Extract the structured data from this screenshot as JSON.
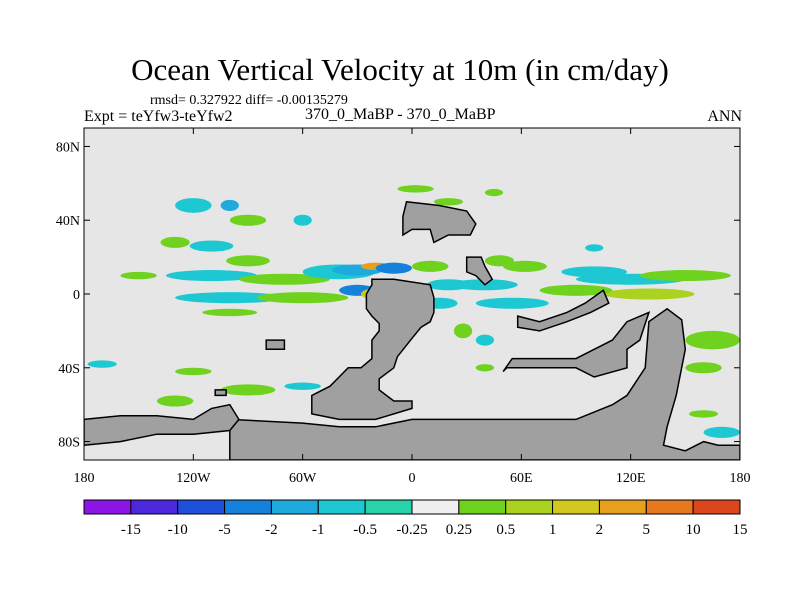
{
  "chart_data": {
    "type": "heatmap",
    "title": "Ocean Vertical Velocity at 10m (in cm/day)",
    "stats_line": "rmsd= 0.327922 diff= -0.00135279",
    "experiment_label": "Expt = teYfw3-teYfw2",
    "cases_label": "370_0_MaBP - 370_0_MaBP",
    "season_label": "ANN",
    "x_axis": {
      "range": [
        -180,
        180
      ],
      "ticks": [
        {
          "value": -180,
          "label": "180"
        },
        {
          "value": -120,
          "label": "120W"
        },
        {
          "value": -60,
          "label": "60W"
        },
        {
          "value": 0,
          "label": "0"
        },
        {
          "value": 60,
          "label": "60E"
        },
        {
          "value": 120,
          "label": "120E"
        },
        {
          "value": 180,
          "label": "180"
        }
      ]
    },
    "y_axis": {
      "range": [
        -90,
        90
      ],
      "ticks": [
        {
          "value": 80,
          "label": "80N"
        },
        {
          "value": 40,
          "label": "40N"
        },
        {
          "value": 0,
          "label": "0"
        },
        {
          "value": -40,
          "label": "40S"
        },
        {
          "value": -80,
          "label": "80S"
        }
      ]
    },
    "colorbar": {
      "labels": [
        "-15",
        "-10",
        "-5",
        "-2",
        "-1",
        "-0.5",
        "-0.25",
        "0.25",
        "0.5",
        "1",
        "2",
        "5",
        "10",
        "15"
      ],
      "colors": [
        "#8c14e6",
        "#4b28dc",
        "#1e50dc",
        "#1482dc",
        "#1eaadc",
        "#1ec8d2",
        "#28d2aa",
        "#f0f0f0",
        "#6ed21e",
        "#aad21e",
        "#d2c81e",
        "#e6a01e",
        "#e6781e",
        "#dc461e"
      ]
    },
    "land_color": "#a0a0a0",
    "background_color": "#e6e6e6",
    "land_masks": [
      {
        "name": "north-america",
        "points": [
          [
            -10,
            8
          ],
          [
            -22,
            8
          ],
          [
            -22,
            5
          ],
          [
            -25,
            0
          ],
          [
            -25,
            -8
          ],
          [
            -22,
            -12
          ],
          [
            -18,
            -16
          ],
          [
            -18,
            -20
          ],
          [
            -22,
            -25
          ],
          [
            -22,
            -35
          ],
          [
            -28,
            -40
          ],
          [
            -35,
            -40
          ],
          [
            -40,
            -45
          ],
          [
            -45,
            -50
          ],
          [
            -55,
            -55
          ],
          [
            -55,
            -60
          ],
          [
            -55,
            -65
          ],
          [
            -40,
            -68
          ],
          [
            -20,
            -68
          ],
          [
            0,
            -62
          ],
          [
            0,
            -58
          ],
          [
            -10,
            -58
          ],
          [
            -18,
            -52
          ],
          [
            -18,
            -46
          ],
          [
            -10,
            -40
          ],
          [
            -8,
            -34
          ],
          [
            0,
            -24
          ],
          [
            5,
            -18
          ],
          [
            10,
            -15
          ],
          [
            12,
            -10
          ],
          [
            12,
            -2
          ],
          [
            10,
            5
          ]
        ]
      },
      {
        "name": "south-america",
        "points": [
          [
            -100,
            -68
          ],
          [
            -60,
            -70
          ],
          [
            -40,
            -72
          ],
          [
            -20,
            -72
          ],
          [
            0,
            -68
          ],
          [
            40,
            -68
          ],
          [
            60,
            -68
          ],
          [
            90,
            -68
          ],
          [
            110,
            -60
          ],
          [
            118,
            -55
          ],
          [
            128,
            -40
          ],
          [
            130,
            -15
          ],
          [
            140,
            -8
          ],
          [
            148,
            -14
          ],
          [
            150,
            -30
          ],
          [
            145,
            -55
          ],
          [
            140,
            -72
          ],
          [
            138,
            -82
          ],
          [
            150,
            -85
          ],
          [
            160,
            -80
          ],
          [
            168,
            -82
          ],
          [
            180,
            -82
          ],
          [
            180,
            -90
          ],
          [
            -100,
            -90
          ]
        ]
      },
      {
        "name": "antarctica",
        "points": [
          [
            -180,
            -68
          ],
          [
            -160,
            -66
          ],
          [
            -140,
            -66
          ],
          [
            -120,
            -68
          ],
          [
            -110,
            -62
          ],
          [
            -100,
            -60
          ],
          [
            -95,
            -68
          ],
          [
            -100,
            -74
          ],
          [
            -120,
            -76
          ],
          [
            -140,
            -76
          ],
          [
            -160,
            -80
          ],
          [
            -180,
            -82
          ]
        ]
      },
      {
        "name": "middle-east-landmass",
        "points": [
          [
            52,
            -40
          ],
          [
            70,
            -40
          ],
          [
            90,
            -40
          ],
          [
            100,
            -45
          ],
          [
            118,
            -40
          ],
          [
            118,
            -30
          ],
          [
            125,
            -25
          ],
          [
            130,
            -10
          ],
          [
            118,
            -15
          ],
          [
            110,
            -25
          ],
          [
            100,
            -30
          ],
          [
            90,
            -35
          ],
          [
            70,
            -35
          ],
          [
            55,
            -35
          ],
          [
            50,
            -42
          ]
        ]
      },
      {
        "name": "africa-north",
        "points": [
          [
            -3,
            50
          ],
          [
            15,
            48
          ],
          [
            30,
            45
          ],
          [
            35,
            38
          ],
          [
            32,
            32
          ],
          [
            20,
            32
          ],
          [
            12,
            28
          ],
          [
            10,
            35
          ],
          [
            0,
            35
          ],
          [
            -5,
            32
          ],
          [
            -5,
            42
          ]
        ]
      },
      {
        "name": "east-peninsula",
        "points": [
          [
            58,
            -12
          ],
          [
            70,
            -15
          ],
          [
            85,
            -10
          ],
          [
            95,
            -5
          ],
          [
            105,
            2
          ],
          [
            108,
            -5
          ],
          [
            98,
            -10
          ],
          [
            85,
            -15
          ],
          [
            70,
            -20
          ],
          [
            58,
            -18
          ]
        ]
      },
      {
        "name": "island-1",
        "points": [
          [
            30,
            20
          ],
          [
            38,
            20
          ],
          [
            40,
            15
          ],
          [
            44,
            8
          ],
          [
            40,
            5
          ],
          [
            35,
            10
          ],
          [
            30,
            12
          ]
        ]
      },
      {
        "name": "island-2",
        "points": [
          [
            -80,
            -25
          ],
          [
            -70,
            -25
          ],
          [
            -70,
            -30
          ],
          [
            -80,
            -30
          ]
        ]
      },
      {
        "name": "island-3",
        "points": [
          [
            -108,
            -52
          ],
          [
            -102,
            -52
          ],
          [
            -102,
            -55
          ],
          [
            -108,
            -55
          ]
        ]
      }
    ],
    "anomaly_patches": [
      {
        "lon": -120,
        "lat": 48,
        "rx": 10,
        "ry": 4,
        "level": "-0.5"
      },
      {
        "lon": -100,
        "lat": 48,
        "rx": 5,
        "ry": 3,
        "level": "-1"
      },
      {
        "lon": -90,
        "lat": 40,
        "rx": 10,
        "ry": 3,
        "level": "0.5"
      },
      {
        "lon": -60,
        "lat": 40,
        "rx": 5,
        "ry": 3,
        "level": "-0.5"
      },
      {
        "lon": -130,
        "lat": 28,
        "rx": 8,
        "ry": 3,
        "level": "0.5"
      },
      {
        "lon": -110,
        "lat": 26,
        "rx": 12,
        "ry": 3,
        "level": "-0.5"
      },
      {
        "lon": -90,
        "lat": 18,
        "rx": 12,
        "ry": 3,
        "level": "0.5"
      },
      {
        "lon": -150,
        "lat": 10,
        "rx": 10,
        "ry": 2,
        "level": "0.5"
      },
      {
        "lon": -110,
        "lat": 10,
        "rx": 25,
        "ry": 3,
        "level": "-0.5"
      },
      {
        "lon": -70,
        "lat": 8,
        "rx": 25,
        "ry": 3,
        "level": "0.5"
      },
      {
        "lon": -40,
        "lat": 12,
        "rx": 20,
        "ry": 4,
        "level": "-0.5"
      },
      {
        "lon": -30,
        "lat": 13,
        "rx": 14,
        "ry": 3,
        "level": "-1"
      },
      {
        "lon": -20,
        "lat": 15,
        "rx": 8,
        "ry": 2,
        "level": "5"
      },
      {
        "lon": -10,
        "lat": 14,
        "rx": 10,
        "ry": 3,
        "level": "-2"
      },
      {
        "lon": -100,
        "lat": -2,
        "rx": 30,
        "ry": 3,
        "level": "-0.5"
      },
      {
        "lon": -60,
        "lat": -2,
        "rx": 25,
        "ry": 3,
        "level": "0.5"
      },
      {
        "lon": -30,
        "lat": 2,
        "rx": 10,
        "ry": 3,
        "level": "-2"
      },
      {
        "lon": -20,
        "lat": 0,
        "rx": 8,
        "ry": 3,
        "level": "2"
      },
      {
        "lon": -100,
        "lat": -10,
        "rx": 15,
        "ry": 2,
        "level": "0.5"
      },
      {
        "lon": 10,
        "lat": 15,
        "rx": 10,
        "ry": 3,
        "level": "0.5"
      },
      {
        "lon": 20,
        "lat": 5,
        "rx": 12,
        "ry": 3,
        "level": "-0.5"
      },
      {
        "lon": 40,
        "lat": 5,
        "rx": 18,
        "ry": 3,
        "level": "-0.5"
      },
      {
        "lon": 48,
        "lat": 18,
        "rx": 8,
        "ry": 3,
        "level": "0.5"
      },
      {
        "lon": 62,
        "lat": 15,
        "rx": 12,
        "ry": 3,
        "level": "0.5"
      },
      {
        "lon": 100,
        "lat": 12,
        "rx": 18,
        "ry": 3,
        "level": "-0.5"
      },
      {
        "lon": 120,
        "lat": 8,
        "rx": 30,
        "ry": 3,
        "level": "-0.5"
      },
      {
        "lon": 150,
        "lat": 10,
        "rx": 25,
        "ry": 3,
        "level": "0.5"
      },
      {
        "lon": 130,
        "lat": 0,
        "rx": 25,
        "ry": 3,
        "level": "1"
      },
      {
        "lon": 90,
        "lat": 2,
        "rx": 20,
        "ry": 3,
        "level": "0.5"
      },
      {
        "lon": 55,
        "lat": -5,
        "rx": 20,
        "ry": 3,
        "level": "-0.5"
      },
      {
        "lon": 15,
        "lat": -5,
        "rx": 10,
        "ry": 3,
        "level": "-0.5"
      },
      {
        "lon": 28,
        "lat": -20,
        "rx": 5,
        "ry": 4,
        "level": "0.5"
      },
      {
        "lon": 40,
        "lat": -25,
        "rx": 5,
        "ry": 3,
        "level": "-0.5"
      },
      {
        "lon": 165,
        "lat": -25,
        "rx": 15,
        "ry": 5,
        "level": "0.5"
      },
      {
        "lon": 160,
        "lat": -40,
        "rx": 10,
        "ry": 3,
        "level": "0.5"
      },
      {
        "lon": -170,
        "lat": -38,
        "rx": 8,
        "ry": 2,
        "level": "-0.5"
      },
      {
        "lon": -120,
        "lat": -42,
        "rx": 10,
        "ry": 2,
        "level": "0.5"
      },
      {
        "lon": -90,
        "lat": -52,
        "rx": 15,
        "ry": 3,
        "level": "0.5"
      },
      {
        "lon": -60,
        "lat": -50,
        "rx": 10,
        "ry": 2,
        "level": "-0.5"
      },
      {
        "lon": -130,
        "lat": -58,
        "rx": 10,
        "ry": 3,
        "level": "0.5"
      },
      {
        "lon": -140,
        "lat": -70,
        "rx": 20,
        "ry": 2,
        "level": "-0.5"
      },
      {
        "lon": -60,
        "lat": -77,
        "rx": 8,
        "ry": 3,
        "level": "0.5"
      },
      {
        "lon": 40,
        "lat": -40,
        "rx": 5,
        "ry": 2,
        "level": "0.5"
      },
      {
        "lon": 160,
        "lat": -65,
        "rx": 8,
        "ry": 2,
        "level": "0.5"
      },
      {
        "lon": 170,
        "lat": -75,
        "rx": 10,
        "ry": 3,
        "level": "-0.5"
      },
      {
        "lon": 20,
        "lat": 50,
        "rx": 8,
        "ry": 2,
        "level": "0.5"
      },
      {
        "lon": 45,
        "lat": 55,
        "rx": 5,
        "ry": 2,
        "level": "0.5"
      },
      {
        "lon": 100,
        "lat": 25,
        "rx": 5,
        "ry": 2,
        "level": "-0.5"
      },
      {
        "lon": 2,
        "lat": 57,
        "rx": 10,
        "ry": 2,
        "level": "0.5"
      }
    ]
  }
}
